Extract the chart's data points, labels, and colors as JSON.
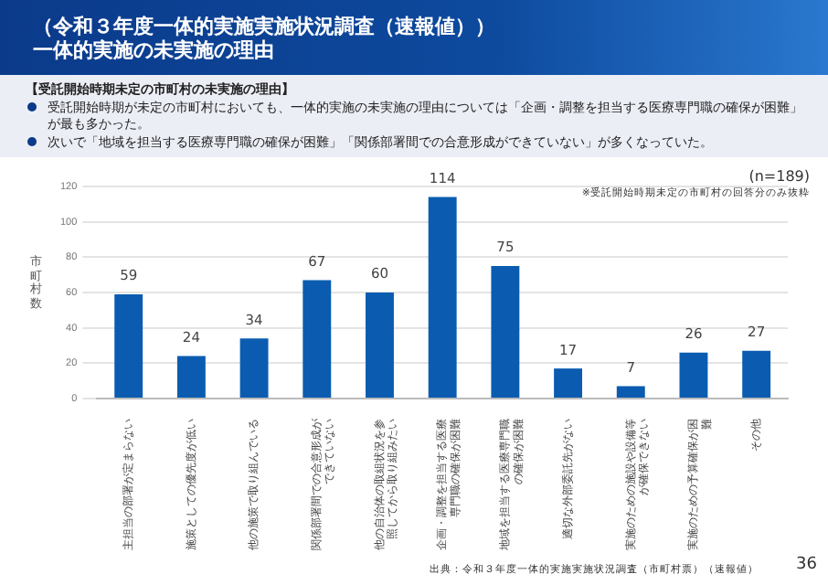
{
  "chart_data": {
    "type": "bar",
    "title": "一体的実施の未実施の理由",
    "subtitle": "（令和３年度一体的実施実施状況調査（速報値））",
    "ylabel": "市町村数",
    "categories": [
      "主担当の部署が定まらない",
      "施策としての優先度が低い",
      "他の施策で取り組んでいる",
      "関係部署間での合意形成ができていない",
      "他の自治体の取組状況を参照してから取り組みたい",
      "企画・調整を担当する医療専門職の確保が困難",
      "地域を担当する医療専門職の確保が困難",
      "適切な外部委託先がない",
      "実施のための施設や設備等が確保できない",
      "実施のための予算確保が困難",
      "その他"
    ],
    "values": [
      59,
      24,
      34,
      67,
      60,
      114,
      75,
      17,
      7,
      26,
      27
    ],
    "color": "#0b5cb0",
    "ylim": [
      0,
      120
    ],
    "yticks": [
      0,
      20,
      40,
      60,
      80,
      100,
      120
    ],
    "grid": "y",
    "data_labels": true,
    "annotations": [
      "【受託開始時期未定の市町村の未実施の理由】",
      "受託開始時期が未定の市町村においても、一体的実施の未実施の理由については「企画・調整を担当する医療専門職の確保が困難」が最も多かった。",
      "次いで「地域を担当する医療専門職の確保が困難」「関係部署間での合意形成ができていない」が多くなっていた。",
      "(n=189)",
      "※受託開始時期未定の市町村の回答分のみ抜粋",
      "出典：令和３年度一体的実施実施状況調査（市町村票）（速報値）",
      "36"
    ]
  }
}
